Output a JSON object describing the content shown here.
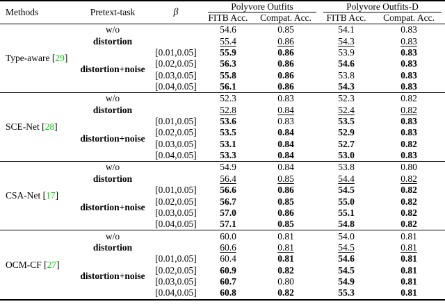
{
  "page": {
    "background": "#ffffff"
  },
  "table": {
    "citation_color": "#00d300",
    "punct": {
      "open": "[",
      "close": "]"
    },
    "headers": {
      "methods": "Methods",
      "pretext_task": "Pretext-task",
      "beta": "β",
      "groups": [
        {
          "label": "Polyvore Outfits",
          "sub": [
            "FITB Acc.",
            "Compat. Acc."
          ]
        },
        {
          "label": "Polyvore Outfits-D",
          "sub": [
            "FITB Acc.",
            "Compat. Acc."
          ]
        }
      ]
    },
    "blocks": [
      {
        "method": "Type-aware",
        "citation": "29",
        "rows": [
          {
            "pretext": "w/o",
            "beta": "",
            "values": [
              "54.6",
              "0.85",
              "54.1",
              "0.83"
            ],
            "styles": [
              "n",
              "n",
              "n",
              "n"
            ]
          },
          {
            "pretext": "distortion",
            "beta": "",
            "values": [
              "55.4",
              "0.86",
              "54.3",
              "0.83"
            ],
            "styles": [
              "u",
              "u",
              "u",
              "u"
            ]
          },
          {
            "pretext": "distortion+noise",
            "beta": "[0.01,0.05]",
            "values": [
              "55.9",
              "0.86",
              "53.9",
              "0.83"
            ],
            "styles": [
              "b",
              "b",
              "n",
              "b"
            ]
          },
          {
            "beta": "[0.02,0.05]",
            "values": [
              "56.3",
              "0.86",
              "54.6",
              "0.83"
            ],
            "styles": [
              "b",
              "b",
              "b",
              "b"
            ]
          },
          {
            "beta": "[0.03,0.05]",
            "values": [
              "55.8",
              "0.86",
              "53.8",
              "0.83"
            ],
            "styles": [
              "b",
              "b",
              "n",
              "b"
            ]
          },
          {
            "beta": "[0.04,0.05]",
            "values": [
              "56.1",
              "0.86",
              "54.3",
              "0.83"
            ],
            "styles": [
              "b",
              "b",
              "b",
              "b"
            ]
          }
        ]
      },
      {
        "method": "SCE-Net",
        "citation": "28",
        "rows": [
          {
            "pretext": "w/o",
            "beta": "",
            "values": [
              "52.3",
              "0.83",
              "52.3",
              "0.82"
            ],
            "styles": [
              "n",
              "n",
              "n",
              "n"
            ]
          },
          {
            "pretext": "distortion",
            "beta": "",
            "values": [
              "52.8",
              "0.84",
              "52.4",
              "0.82"
            ],
            "styles": [
              "u",
              "u",
              "u",
              "u"
            ]
          },
          {
            "pretext": "distortion+noise",
            "beta": "[0.01,0.05]",
            "values": [
              "53.6",
              "0.83",
              "53.5",
              "0.83"
            ],
            "styles": [
              "b",
              "n",
              "b",
              "b"
            ]
          },
          {
            "beta": "[0.02,0.05]",
            "values": [
              "53.5",
              "0.84",
              "52.9",
              "0.83"
            ],
            "styles": [
              "b",
              "b",
              "b",
              "b"
            ]
          },
          {
            "beta": "[0.03,0.05]",
            "values": [
              "53.1",
              "0.84",
              "52.7",
              "0.82"
            ],
            "styles": [
              "b",
              "b",
              "b",
              "b"
            ]
          },
          {
            "beta": "[0.04,0.05]",
            "values": [
              "53.3",
              "0.84",
              "53.0",
              "0.83"
            ],
            "styles": [
              "b",
              "b",
              "b",
              "b"
            ]
          }
        ]
      },
      {
        "method": "CSA-Net",
        "citation": "17",
        "rows": [
          {
            "pretext": "w/o",
            "beta": "",
            "values": [
              "54.9",
              "0.84",
              "53.8",
              "0.80"
            ],
            "styles": [
              "n",
              "n",
              "n",
              "n"
            ]
          },
          {
            "pretext": "distortion",
            "beta": "",
            "values": [
              "56.4",
              "0.85",
              "54.4",
              "0.82"
            ],
            "styles": [
              "u",
              "u",
              "u",
              "u"
            ]
          },
          {
            "pretext": "distortion+noise",
            "beta": "[0.01,0.05]",
            "values": [
              "56.6",
              "0.86",
              "54.5",
              "0.82"
            ],
            "styles": [
              "b",
              "b",
              "b",
              "b"
            ]
          },
          {
            "beta": "[0.02,0.05]",
            "values": [
              "56.7",
              "0.85",
              "55.0",
              "0.82"
            ],
            "styles": [
              "b",
              "b",
              "b",
              "b"
            ]
          },
          {
            "beta": "[0.03,0.05]",
            "values": [
              "57.0",
              "0.86",
              "55.1",
              "0.82"
            ],
            "styles": [
              "b",
              "b",
              "b",
              "b"
            ]
          },
          {
            "beta": "[0.04,0.05]",
            "values": [
              "57.1",
              "0.85",
              "54.8",
              "0.82"
            ],
            "styles": [
              "b",
              "b",
              "b",
              "b"
            ]
          }
        ]
      },
      {
        "method": "OCM-CF",
        "citation": "27",
        "rows": [
          {
            "pretext": "w/o",
            "beta": "",
            "values": [
              "60.0",
              "0.81",
              "54.0",
              "0.81"
            ],
            "styles": [
              "n",
              "n",
              "n",
              "n"
            ]
          },
          {
            "pretext": "distortion",
            "beta": "",
            "values": [
              "60.6",
              "0.81",
              "54.5",
              "0.81"
            ],
            "styles": [
              "u",
              "u",
              "u",
              "u"
            ]
          },
          {
            "pretext": "distortion+noise",
            "beta": "[0.01,0.05]",
            "values": [
              "60.4",
              "0.81",
              "54.6",
              "0.81"
            ],
            "styles": [
              "n",
              "b",
              "b",
              "b"
            ]
          },
          {
            "beta": "[0.02,0.05]",
            "values": [
              "60.9",
              "0.82",
              "54.5",
              "0.81"
            ],
            "styles": [
              "b",
              "b",
              "b",
              "b"
            ]
          },
          {
            "beta": "[0.03,0.05]",
            "values": [
              "60.7",
              "0.80",
              "54.9",
              "0.81"
            ],
            "styles": [
              "b",
              "n",
              "b",
              "b"
            ]
          },
          {
            "beta": "[0.04,0.05]",
            "values": [
              "60.8",
              "0.82",
              "55.3",
              "0.81"
            ],
            "styles": [
              "b",
              "b",
              "b",
              "b"
            ]
          }
        ]
      }
    ]
  }
}
